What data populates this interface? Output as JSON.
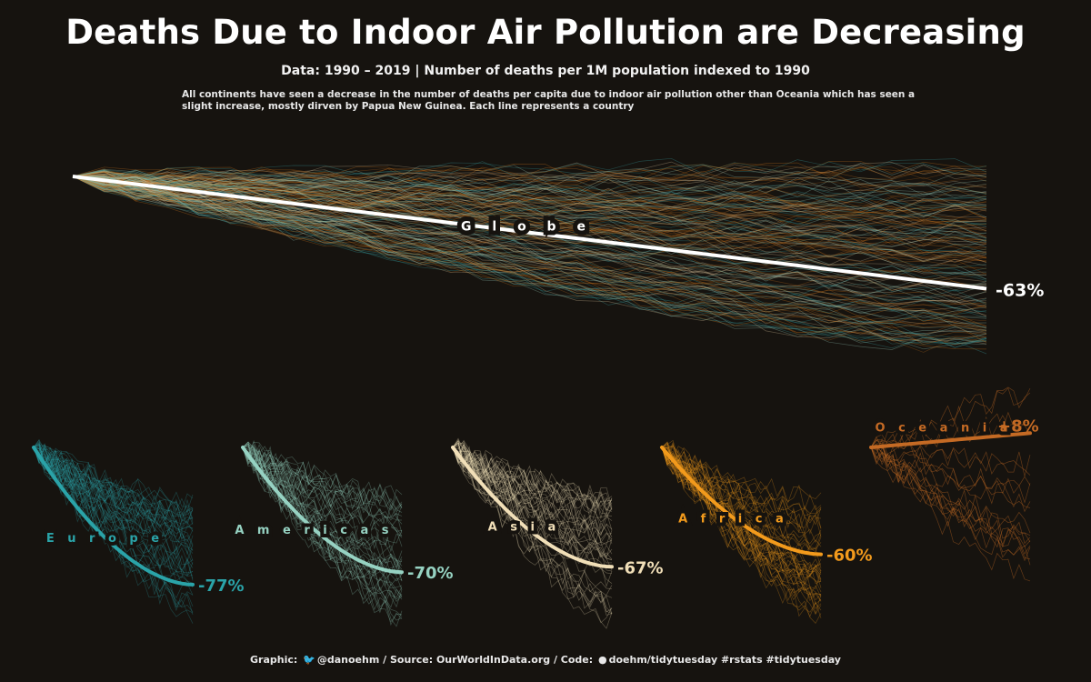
{
  "header": {
    "title": "Deaths Due to Indoor Air Pollution are Decreasing",
    "subtitle": "Data: 1990 – 2019 |  Number of deaths per 1M population indexed to 1990",
    "description": "All continents have seen a decrease in the number of deaths per capita due to indoor air pollution other than Oceania which has seen a slight increase, mostly dirven by Papua New Guinea. Each line represents a country"
  },
  "footer": {
    "graphic_label": "Graphic:",
    "twitter_icon": "twitter-icon",
    "twitter_handle": "@danoehm",
    "source": "/ Source: OurWorldInData.org / Code:",
    "github_icon": "github-icon",
    "code": "doehm/tidytuesday #rstats #tidytuesday"
  },
  "chart_data": [
    {
      "type": "line",
      "panel": "Globe",
      "label": "Globe",
      "change_label": "-63%",
      "x_range": [
        1990,
        2019
      ],
      "y_index_start": 100,
      "highlight_end_value": 37,
      "color": "#ffffff",
      "background_line_colors": [
        "#d97a1e",
        "#3aa6a8",
        "#e0c9a0",
        "#9ed3c4",
        "#b5671e"
      ],
      "grid": false
    },
    {
      "type": "line",
      "panel": "Europe",
      "label": "E u r o p e",
      "change_label": "-77%",
      "x_range": [
        1990,
        2019
      ],
      "y_index_start": 100,
      "highlight_end_value": 23,
      "color": "#2aa3a8"
    },
    {
      "type": "line",
      "panel": "Americas",
      "label": "A m e r i c a s",
      "change_label": "-70%",
      "x_range": [
        1990,
        2019
      ],
      "y_index_start": 100,
      "highlight_end_value": 30,
      "color": "#96d2c2"
    },
    {
      "type": "line",
      "panel": "Asia",
      "label": "A s i a",
      "change_label": "-67%",
      "x_range": [
        1990,
        2019
      ],
      "y_index_start": 100,
      "highlight_end_value": 33,
      "color": "#f1dfb8"
    },
    {
      "type": "line",
      "panel": "Africa",
      "label": "A f r i c a",
      "change_label": "-60%",
      "x_range": [
        1990,
        2019
      ],
      "y_index_start": 100,
      "highlight_end_value": 40,
      "color": "#f29a1c"
    },
    {
      "type": "line",
      "panel": "Oceania",
      "label": "O c e a n i a",
      "change_label": "+8%",
      "x_range": [
        1990,
        2019
      ],
      "y_index_start": 100,
      "highlight_end_value": 108,
      "color": "#c46a24"
    }
  ]
}
